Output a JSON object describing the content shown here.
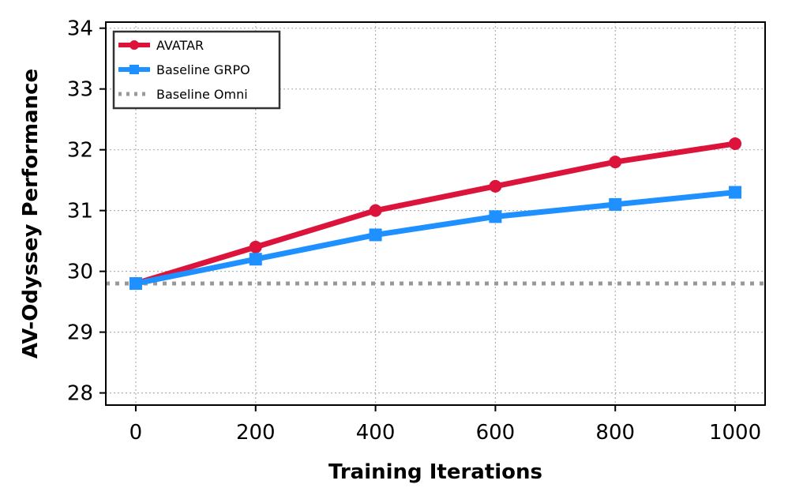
{
  "chart_data": {
    "type": "line",
    "title": "",
    "xlabel": "Training Iterations",
    "ylabel": "AV-Odyssey Performance",
    "x": [
      0,
      200,
      400,
      600,
      800,
      1000
    ],
    "xlim": [
      -50,
      1050
    ],
    "ylim": [
      27.8,
      34.1
    ],
    "xticks": [
      0,
      200,
      400,
      600,
      800,
      1000
    ],
    "yticks": [
      28,
      29,
      30,
      31,
      32,
      33,
      34
    ],
    "grid": true,
    "legend_position": "top-left",
    "series": [
      {
        "name": "AVATAR",
        "values": [
          29.8,
          30.4,
          31.0,
          31.4,
          31.8,
          32.1
        ],
        "color": "#dc143c",
        "marker": "circle"
      },
      {
        "name": "Baseline GRPO",
        "values": [
          29.8,
          30.2,
          30.6,
          30.9,
          31.1,
          31.3
        ],
        "color": "#1e90ff",
        "marker": "square"
      }
    ],
    "reference_lines": [
      {
        "name": "Baseline Omni",
        "y": 29.8,
        "color": "#999999",
        "style": "dotted"
      }
    ]
  }
}
